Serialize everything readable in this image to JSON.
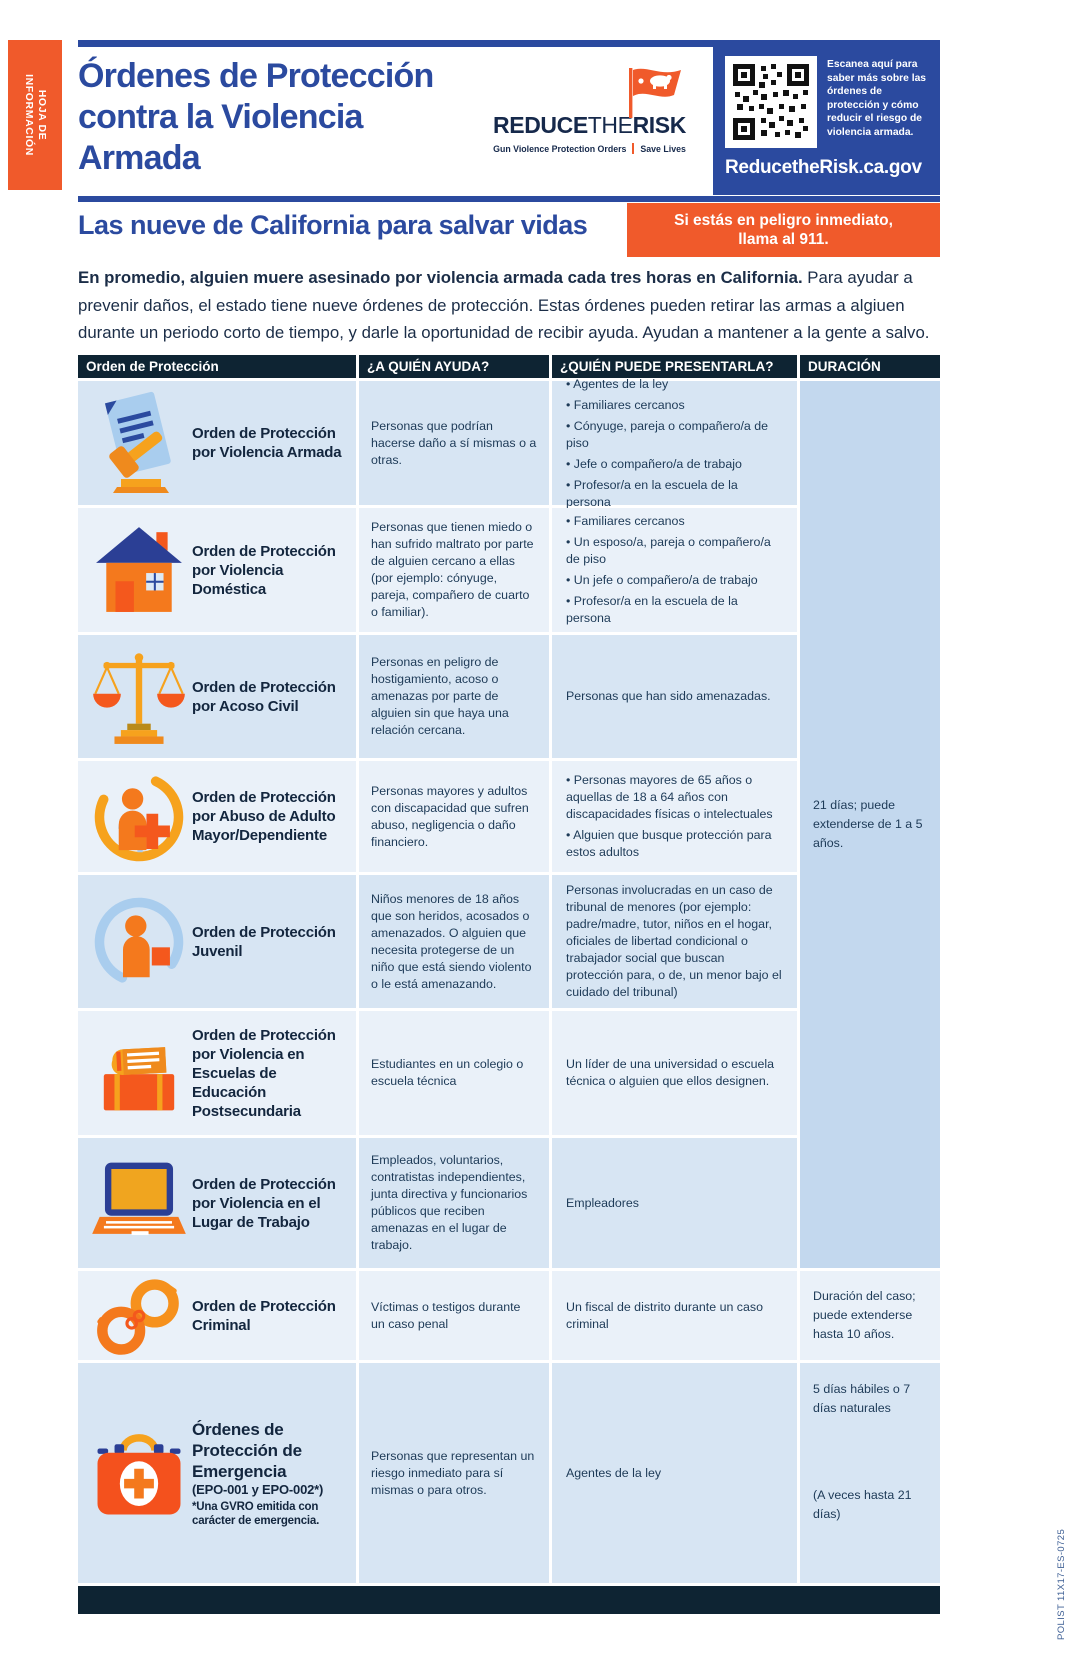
{
  "colors": {
    "navy": "#0e2433",
    "brand_blue": "#2b4a9f",
    "orange": "#f05a2b",
    "row_light": "#eaf1f9",
    "row_medium": "#d7e5f3",
    "duration_cell": "#c3d8ee"
  },
  "side_tab": {
    "line1": "HOJA DE",
    "line2": "INFORMACIÓN"
  },
  "header": {
    "title_lines": [
      "Órdenes de Protección",
      "contra la Violencia",
      "Armada"
    ],
    "logo": {
      "part1": "REDUCE",
      "part2": "THE",
      "part3": "RISK",
      "tagline_left": "Gun Violence Protection Orders",
      "tagline_right": "Save Lives",
      "flag_icon": "bear-flag-icon"
    },
    "qr_panel": {
      "qr_icon": "qr-code-icon",
      "text": "Escanea aquí para saber más sobre las órdenes de protección y cómo reducir el riesgo de violencia armada.",
      "url": "ReducetheRisk.ca.gov"
    }
  },
  "intro": {
    "subtitle": "Las nueve de California para salvar vidas",
    "alert_line1": "Si estás en peligro inmediato,",
    "alert_line2": "llama al 911.",
    "lead_bold": "En promedio, alguien muere asesinado por violencia armada cada tres horas en California.",
    "lead_rest": " Para ayudar a prevenir daños, el estado tiene nueve órdenes de protección. Estas órdenes pueden retirar las armas a algiuen durante un periodo corto de tiempo, y darle la oportunidad de recibir ayuda. Ayudan a mantener a la gente a salvo."
  },
  "table": {
    "headers": [
      "Orden de Protección",
      "¿A QUIÉN AYUDA?",
      "¿QUIÉN PUEDE PRESENTARLA?",
      "DURACIÓN"
    ],
    "rows": [
      {
        "icon": "document-gavel-icon",
        "name": "Orden de Protección por Violencia Armada",
        "helps": "Personas que podrían hacerse daño a sí mismas o a otras.",
        "filers_list": [
          "Agentes de la ley",
          "Familiares cercanos",
          "Cónyuge, pareja o compañero/a de piso",
          "Jefe o compañero/a de trabajo",
          "Profesor/a en la escuela de la persona"
        ]
      },
      {
        "icon": "house-icon",
        "name": "Orden de Protección por Violencia Doméstica",
        "helps": "Personas que tienen miedo o han sufrido maltrato por parte de alguien cercano a ellas (por ejemplo: cónyuge, pareja, compañero de cuarto o familiar).",
        "filers_list": [
          "Familiares cercanos",
          "Un esposo/a, pareja o compañero/a de piso",
          "Un jefe o compañero/a de trabajo",
          "Profesor/a en la escuela de la persona"
        ]
      },
      {
        "icon": "scales-icon",
        "name": "Orden de Protección por Acoso Civil",
        "helps": "Personas en peligro de hostigamiento, acoso o amenazas por parte de alguien sin que haya una relación cercana.",
        "filers_text": "Personas que han sido amenazadas."
      },
      {
        "icon": "elder-care-icon",
        "name": "Orden de Protección por Abuso de Adulto Mayor/Dependiente",
        "helps": "Personas mayores y adultos con discapacidad que sufren abuso, negligencia o daño financiero.",
        "filers_list": [
          "Personas mayores de 65 años o aquellas de 18 a 64 años con discapacidades físicas o intelectuales",
          "Alguien que busque protección para estos adultos"
        ]
      },
      {
        "icon": "juvenile-person-icon",
        "name": "Orden de Protección Juvenil",
        "helps": "Niños menores de 18 años que son heridos, acosados o amenazados. O alguien que necesita protegerse de un niño que está siendo violento o le está amenazando.",
        "filers_text": "Personas involucradas en un caso de tribunal de menores (por ejemplo: padre/madre, tutor, niños en el hogar, oficiales de libertad condicional o trabajador social que buscan protección para, o de, un menor bajo el cuidado del tribunal)"
      },
      {
        "icon": "books-icon",
        "name": "Orden de Protección por Violencia en Escuelas de Educación Postsecundaria",
        "helps": "Estudiantes en un colegio o escuela técnica",
        "filers_text": "Un líder de una universidad o escuela técnica o alguien que ellos designen."
      },
      {
        "icon": "laptop-icon",
        "name": "Orden de Protección por Violencia en el Lugar de Trabajo",
        "helps": "Empleados, voluntarios, contratistas independientes, junta directiva y funcionarios públicos que reciben amenazas en el lugar de trabajo.",
        "filers_text": "Empleadores"
      },
      {
        "icon": "handcuffs-icon",
        "name": "Orden de Protección Criminal",
        "helps": "Víctimas o testigos durante un caso penal",
        "filers_text": "Un fiscal de distrito durante un caso criminal"
      },
      {
        "icon": "first-aid-kit-icon",
        "name": "Órdenes de Protección de Emergencia",
        "name_sub": "(EPO-001 y EPO-002*)",
        "name_note": "*Una GVRO emitida con carácter de emergencia.",
        "helps": "Personas que representan un riesgo inmediato para sí mismas o para otros.",
        "filers_text": "Agentes de la ley"
      }
    ],
    "durations": {
      "rows_1_to_7": "21 días; puede extenderse de 1 a 5 años.",
      "row_8": "Duración del caso; puede extenderse hasta 10 años.",
      "row_9_a": "5 días hábiles o 7 días naturales",
      "row_9_b": "(A veces hasta 21 días)"
    }
  },
  "print_code": "POLIST 11X17-ES-0725"
}
